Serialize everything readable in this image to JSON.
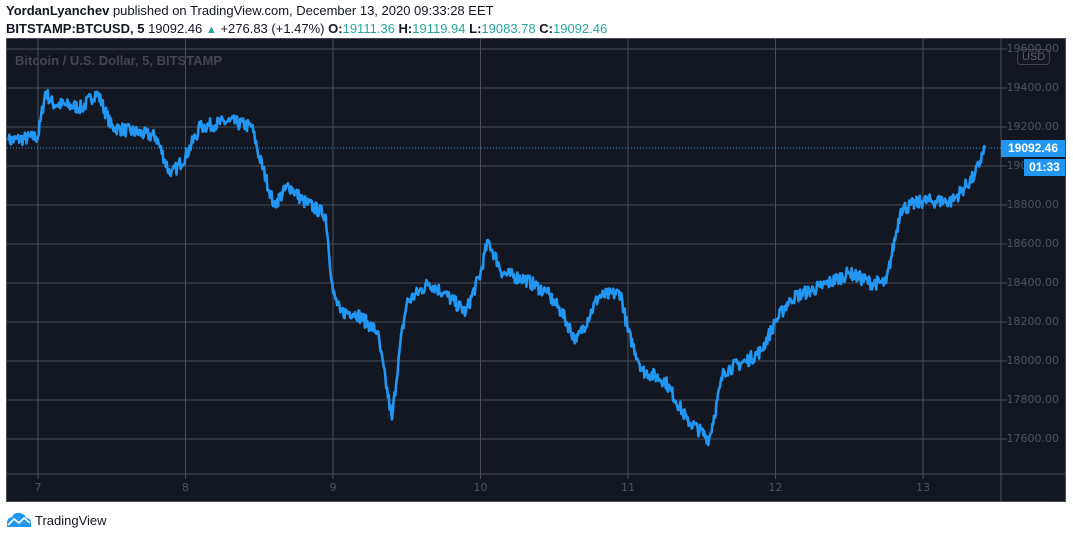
{
  "header": {
    "author": "YordanLyanchev",
    "published_text": "published on TradingView.com, December 13, 2020 09:33:28 EET",
    "symbol": "BITSTAMP:BTCUSD, 5",
    "last": "19092.46",
    "change_icon": "triangle-up-icon",
    "change": "+276.83 (+1.47%)",
    "o_label": "O:",
    "o_value": "19111.36",
    "h_label": "H:",
    "h_value": "19119.94",
    "l_label": "L:",
    "l_value": "19083.78",
    "c_label": "C:",
    "c_value": "19092.46"
  },
  "chart": {
    "legend": "Bitcoin / U.S. Dollar, 5, BITSTAMP",
    "currency": "USD",
    "last_price_label": "19092.46",
    "countdown": "01:33",
    "colors": {
      "background": "#131722",
      "line": "#2196f3",
      "grid": "#4a4d57",
      "axis_text": "#4c525e"
    }
  },
  "chart_data": {
    "type": "line",
    "title": "Bitcoin / U.S. Dollar, 5, BITSTAMP",
    "xlabel": "",
    "ylabel": "USD",
    "x_ticks": [
      "7",
      "8",
      "9",
      "10",
      "11",
      "12",
      "13"
    ],
    "y_ticks": [
      "19600.00",
      "19400.00",
      "19200.00",
      "19000.00",
      "18800.00",
      "18600.00",
      "18400.00",
      "18200.00",
      "18000.00",
      "17800.00",
      "17600.00"
    ],
    "ylim": [
      17400,
      19650
    ],
    "grid": true,
    "series": [
      {
        "name": "BTCUSD",
        "x": [
          6.8,
          7.0,
          7.05,
          7.1,
          7.3,
          7.4,
          7.5,
          7.8,
          7.9,
          8.0,
          8.1,
          8.3,
          8.45,
          8.5,
          8.6,
          8.7,
          8.8,
          8.95,
          9.0,
          9.05,
          9.15,
          9.3,
          9.4,
          9.45,
          9.5,
          9.65,
          9.75,
          9.9,
          10.0,
          10.05,
          10.15,
          10.3,
          10.45,
          10.55,
          10.65,
          10.8,
          10.95,
          11.0,
          11.1,
          11.25,
          11.4,
          11.55,
          11.65,
          11.8,
          11.9,
          12.0,
          12.1,
          12.3,
          12.5,
          12.65,
          12.75,
          12.85,
          13.0,
          13.2,
          13.35,
          13.42
        ],
        "values": [
          19130,
          19150,
          19380,
          19320,
          19300,
          19380,
          19200,
          19150,
          18950,
          19050,
          19200,
          19230,
          19200,
          19050,
          18800,
          18900,
          18820,
          18750,
          18350,
          18250,
          18250,
          18150,
          17700,
          18050,
          18300,
          18400,
          18350,
          18250,
          18450,
          18620,
          18450,
          18420,
          18350,
          18250,
          18100,
          18330,
          18350,
          18150,
          17950,
          17900,
          17700,
          17600,
          17950,
          18000,
          18050,
          18200,
          18320,
          18380,
          18450,
          18400,
          18400,
          18780,
          18820,
          18820,
          18950,
          19092.46
        ]
      }
    ],
    "last_value": 19092.46
  },
  "footer": {
    "logo_icon": "tradingview-cloud-icon",
    "brand": "TradingView"
  }
}
